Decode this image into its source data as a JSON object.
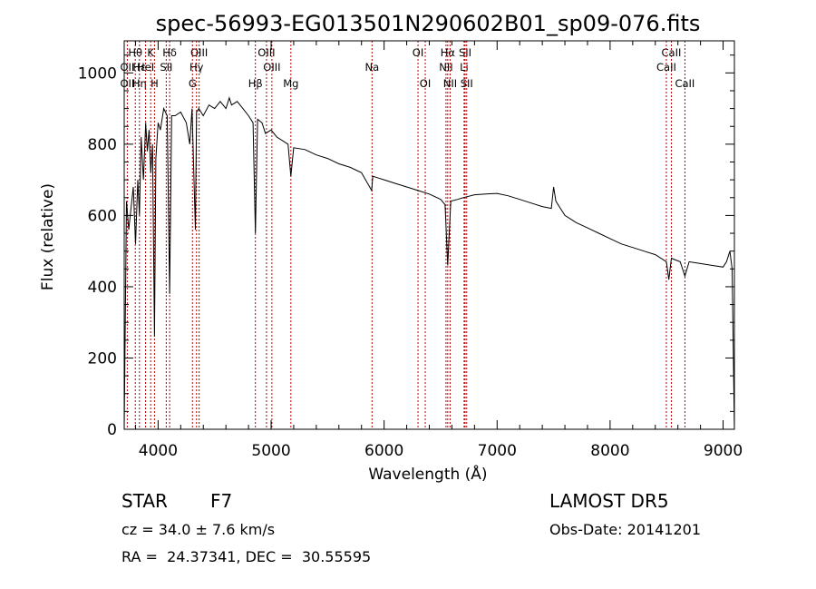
{
  "chart_data": {
    "type": "line",
    "title": "spec-56993-EG013501N290602B01_sp09-076.fits",
    "xlabel": "Wavelength (Å)",
    "ylabel": "Flux (relative)",
    "xlim": [
      3700,
      9100
    ],
    "ylim": [
      0,
      1090
    ],
    "xticks": [
      4000,
      5000,
      6000,
      7000,
      8000,
      9000
    ],
    "yticks": [
      0,
      200,
      400,
      600,
      800,
      1000
    ],
    "grid": false,
    "series": [
      {
        "x": [
          3700,
          3720,
          3740,
          3760,
          3780,
          3800,
          3820,
          3835,
          3850,
          3870,
          3890,
          3905,
          3920,
          3935,
          3950,
          3968,
          3980,
          4000,
          4020,
          4050,
          4080,
          4102,
          4120,
          4150,
          4200,
          4250,
          4280,
          4300,
          4330,
          4340,
          4360,
          4400,
          4450,
          4500,
          4550,
          4600,
          4630,
          4650,
          4700,
          4750,
          4800,
          4840,
          4861,
          4880,
          4920,
          4950,
          5000,
          5050,
          5100,
          5150,
          5175,
          5200,
          5300,
          5400,
          5500,
          5600,
          5700,
          5800,
          5890,
          5900,
          5950,
          6000,
          6100,
          6200,
          6300,
          6400,
          6500,
          6540,
          6563,
          6590,
          6650,
          6700,
          6800,
          6900,
          7000,
          7100,
          7200,
          7300,
          7400,
          7480,
          7500,
          7520,
          7560,
          7600,
          7650,
          7700,
          7800,
          7900,
          8000,
          8100,
          8200,
          8300,
          8400,
          8498,
          8520,
          8542,
          8580,
          8620,
          8662,
          8700,
          8800,
          8900,
          9000,
          9030,
          9060,
          9080,
          9100
        ],
        "y": [
          0,
          640,
          560,
          620,
          680,
          520,
          700,
          600,
          820,
          700,
          860,
          780,
          840,
          720,
          800,
          260,
          760,
          860,
          840,
          900,
          880,
          380,
          880,
          880,
          890,
          860,
          800,
          900,
          560,
          890,
          900,
          880,
          910,
          900,
          920,
          900,
          930,
          910,
          920,
          900,
          880,
          860,
          550,
          870,
          860,
          830,
          840,
          820,
          810,
          800,
          710,
          790,
          785,
          770,
          760,
          745,
          735,
          720,
          670,
          710,
          705,
          700,
          690,
          680,
          670,
          660,
          645,
          630,
          460,
          640,
          645,
          650,
          658,
          660,
          662,
          655,
          645,
          635,
          625,
          620,
          680,
          640,
          620,
          600,
          590,
          580,
          565,
          550,
          535,
          520,
          510,
          500,
          490,
          470,
          420,
          480,
          475,
          470,
          430,
          470,
          465,
          460,
          455,
          470,
          500,
          450,
          0
        ]
      }
    ],
    "line_markers": [
      {
        "label": "Hθ",
        "x": 3798,
        "row": 1
      },
      {
        "label": "OII",
        "x": 3727,
        "row": 2
      },
      {
        "label": "OII",
        "x": 3727,
        "row": 3
      },
      {
        "label": "Hε",
        "x": 3835,
        "row": 2
      },
      {
        "label": "Hη",
        "x": 3835,
        "row": 3
      },
      {
        "label": "K",
        "x": 3934,
        "row": 1
      },
      {
        "label": "HeI",
        "x": 3889,
        "row": 2
      },
      {
        "label": "H",
        "x": 3968,
        "row": 3
      },
      {
        "label": "Hδ",
        "x": 4102,
        "row": 1
      },
      {
        "label": "SII",
        "x": 4072,
        "row": 2
      },
      {
        "label": "OIII",
        "x": 4363,
        "row": 1
      },
      {
        "label": "Hγ",
        "x": 4340,
        "row": 2
      },
      {
        "label": "G",
        "x": 4304,
        "row": 3
      },
      {
        "label": "Hβ",
        "x": 4861,
        "row": 3
      },
      {
        "label": "OIII",
        "x": 4959,
        "row": 1
      },
      {
        "label": "OIII",
        "x": 5007,
        "row": 2
      },
      {
        "label": "Mg",
        "x": 5175,
        "row": 3
      },
      {
        "label": "Na",
        "x": 5893,
        "row": 2
      },
      {
        "label": "OI",
        "x": 6300,
        "row": 1
      },
      {
        "label": "OI",
        "x": 6364,
        "row": 3
      },
      {
        "label": "Hα",
        "x": 6563,
        "row": 1
      },
      {
        "label": "NII",
        "x": 6548,
        "row": 2
      },
      {
        "label": "NII",
        "x": 6584,
        "row": 3
      },
      {
        "label": "SII",
        "x": 6717,
        "row": 1
      },
      {
        "label": "Li",
        "x": 6708,
        "row": 2
      },
      {
        "label": "SII",
        "x": 6731,
        "row": 3
      },
      {
        "label": "CaII",
        "x": 8542,
        "row": 1
      },
      {
        "label": "CaII",
        "x": 8498,
        "row": 2
      },
      {
        "label": "CaII",
        "x": 8662,
        "row": 3
      }
    ],
    "marker_color": "#b00000"
  },
  "info": {
    "class": "STAR",
    "subclass": "F7",
    "survey": "LAMOST DR5",
    "cz": "cz = 34.0 ± 7.6 km/s",
    "obs_date": "Obs-Date: 20141201",
    "coords": "RA =  24.37341, DEC =  30.55595"
  }
}
